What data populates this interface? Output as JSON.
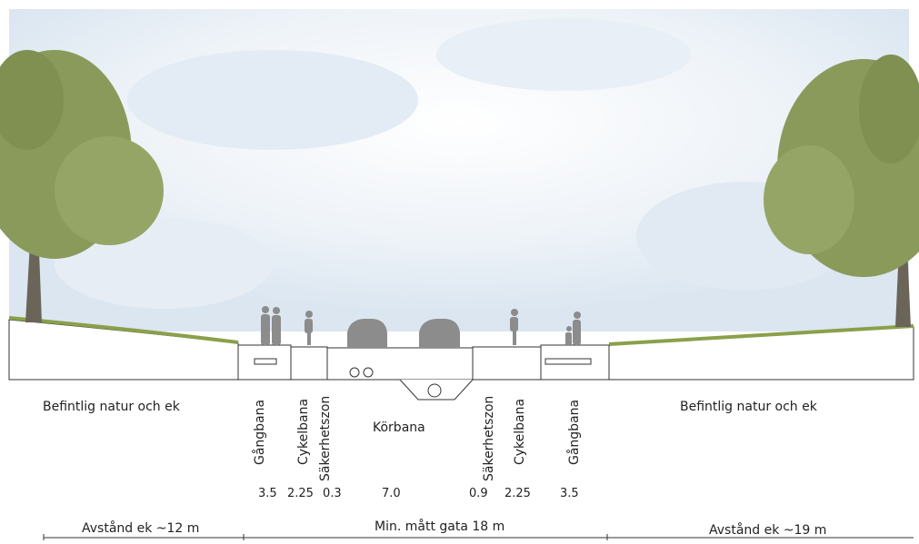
{
  "labels": {
    "left_area": "Befintlig natur och ek",
    "right_area": "Befintlig natur och ek",
    "center_road": "Körbana"
  },
  "sections": [
    {
      "name": "Gångbana",
      "value": "3.5"
    },
    {
      "name": "Cykelbana",
      "value": "2.25"
    },
    {
      "name": "Säkerhetszon",
      "value": "0.3"
    },
    {
      "name": "Körbana",
      "value": "7.0"
    },
    {
      "name": "Säkerhetszon",
      "value": "0.9"
    },
    {
      "name": "Cykelbana",
      "value": "2.25"
    },
    {
      "name": "Gångbana",
      "value": "3.5"
    }
  ],
  "footer": {
    "left": "Avstånd ek ~12 m",
    "center": "Min. mått gata 18 m",
    "right": "Avstånd ek ~19 m"
  },
  "colors": {
    "tree_foliage": "#8a9a5b",
    "trunk": "#6b6459",
    "grass": "#8aa04a",
    "sky": "#dfe9f3",
    "silhouette": "#8c8c8c"
  }
}
